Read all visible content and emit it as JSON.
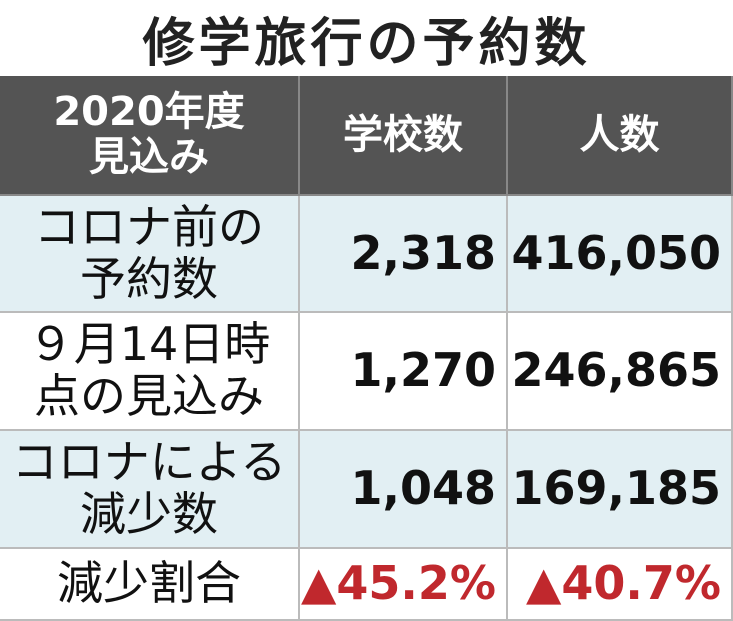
{
  "header": {
    "title": "修学旅行の予約数"
  },
  "table": {
    "columns": [
      "2020年度\n見込み",
      "学校数",
      "人数"
    ],
    "rows": [
      [
        "コロナ前の\n予約数",
        "2,318",
        "416,050"
      ],
      [
        "９月14日時\n点の見込み",
        "1,270",
        "246,865"
      ],
      [
        "コロナによる\n減少数",
        "1,048",
        "169,185"
      ],
      [
        "減少割合",
        "▲45.2%",
        "▲40.7%"
      ]
    ]
  }
}
